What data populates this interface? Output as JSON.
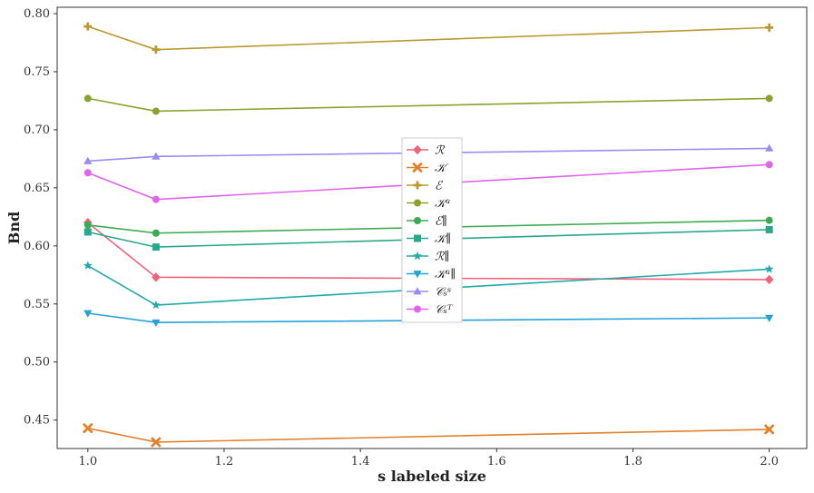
{
  "chart_data": {
    "type": "line",
    "title": "",
    "xlabel": "s labeled size",
    "ylabel": "Bnd",
    "xlim": [
      0.955,
      2.055
    ],
    "ylim": [
      0.4255,
      0.8055
    ],
    "xticks": [
      1.0,
      1.2,
      1.4,
      1.6,
      1.8,
      2.0
    ],
    "xtick_labels": [
      "1.0",
      "1.2",
      "1.4",
      "1.6",
      "1.8",
      "2.0"
    ],
    "yticks": [
      0.45,
      0.5,
      0.55,
      0.6,
      0.65,
      0.7,
      0.75,
      0.8
    ],
    "ytick_labels": [
      "0.45",
      "0.50",
      "0.55",
      "0.60",
      "0.65",
      "0.70",
      "0.75",
      "0.80"
    ],
    "x": [
      1.0,
      1.1,
      2.0
    ],
    "legend_position": "center",
    "grid": false,
    "series": [
      {
        "name": "ℛ",
        "values": [
          0.62,
          0.573,
          0.571
        ],
        "color": "#F0627C",
        "marker": "diamond"
      },
      {
        "name": "𝒦",
        "values": [
          0.443,
          0.431,
          0.442
        ],
        "color": "#E0812B",
        "marker": "x"
      },
      {
        "name": "ℰ",
        "values": [
          0.789,
          0.769,
          0.788
        ],
        "color": "#B99A2E",
        "marker": "plus"
      },
      {
        "name": "𝒦ᵘ",
        "values": [
          0.727,
          0.716,
          0.727
        ],
        "color": "#88A42C",
        "marker": "circle"
      },
      {
        "name": "ℰ∥",
        "values": [
          0.618,
          0.611,
          0.622
        ],
        "color": "#3DAA4F",
        "marker": "circle"
      },
      {
        "name": "𝒦∥",
        "values": [
          0.612,
          0.599,
          0.614
        ],
        "color": "#28A98A",
        "marker": "square"
      },
      {
        "name": "ℛ∥",
        "values": [
          0.583,
          0.549,
          0.58
        ],
        "color": "#23A9A9",
        "marker": "star"
      },
      {
        "name": "𝒦ᵘ∥",
        "values": [
          0.542,
          0.534,
          0.538
        ],
        "color": "#25A3D8",
        "marker": "triangle-down"
      },
      {
        "name": "𝒞ₛˢ",
        "values": [
          0.673,
          0.677,
          0.684
        ],
        "color": "#9B8CF3",
        "marker": "triangle-up"
      },
      {
        "name": "𝒞ₛᵀ",
        "values": [
          0.663,
          0.64,
          0.67
        ],
        "color": "#E065EC",
        "marker": "circle"
      }
    ]
  }
}
